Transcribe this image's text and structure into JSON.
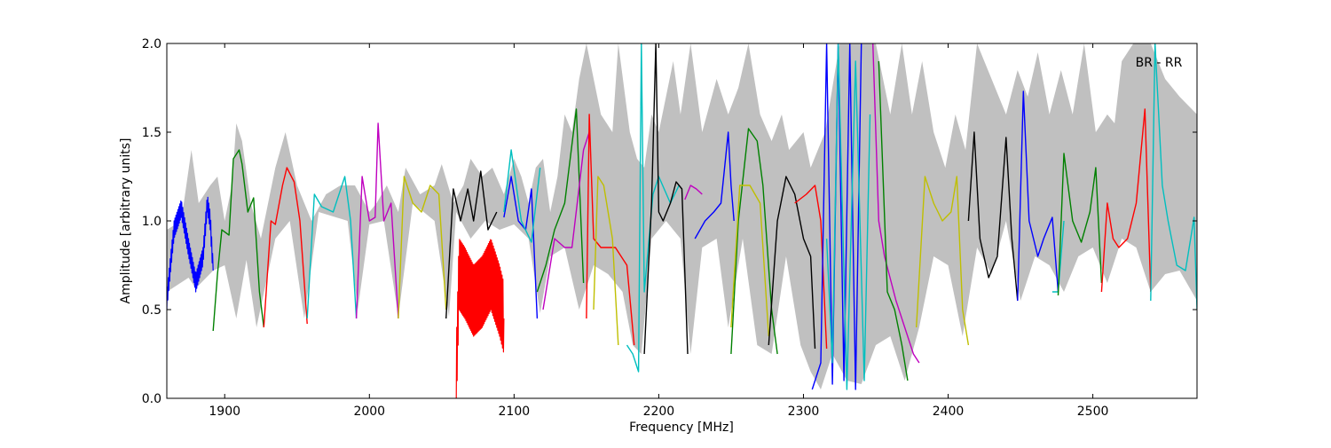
{
  "chart_data": {
    "type": "line",
    "title": "",
    "annotation": "BR - RR",
    "xlabel": "Frequency [MHz]",
    "ylabel": "Amplitude [arbitrary units]",
    "xlim": [
      1860,
      2572
    ],
    "ylim": [
      0.0,
      2.0
    ],
    "xticks": [
      1900,
      2000,
      2100,
      2200,
      2300,
      2400,
      2500
    ],
    "xtick_labels": [
      "1900",
      "2000",
      "2100",
      "2200",
      "2300",
      "2400",
      "2500"
    ],
    "yticks": [
      0.0,
      0.5,
      1.0,
      1.5,
      2.0
    ],
    "ytick_labels": [
      "0.0",
      "0.5",
      "1.0",
      "1.5",
      "2.0"
    ],
    "grid": false,
    "background_band": {
      "color": "#c0c0c0",
      "upper": [
        [
          1860,
          0.95
        ],
        [
          1870,
          1.0
        ],
        [
          1877,
          1.4
        ],
        [
          1882,
          1.1
        ],
        [
          1890,
          1.2
        ],
        [
          1895,
          1.25
        ],
        [
          1900,
          1.0
        ],
        [
          1905,
          1.2
        ],
        [
          1908,
          1.55
        ],
        [
          1912,
          1.45
        ],
        [
          1918,
          1.1
        ],
        [
          1925,
          0.9
        ],
        [
          1935,
          1.3
        ],
        [
          1942,
          1.5
        ],
        [
          1950,
          1.2
        ],
        [
          1960,
          1.0
        ],
        [
          1970,
          1.15
        ],
        [
          1980,
          1.2
        ],
        [
          1990,
          1.2
        ],
        [
          2000,
          1.05
        ],
        [
          2005,
          1.1
        ],
        [
          2012,
          1.2
        ],
        [
          2020,
          1.05
        ],
        [
          2025,
          1.3
        ],
        [
          2035,
          1.15
        ],
        [
          2045,
          1.2
        ],
        [
          2050,
          1.32
        ],
        [
          2058,
          1.1
        ],
        [
          2065,
          1.2
        ],
        [
          2070,
          1.35
        ],
        [
          2078,
          1.25
        ],
        [
          2085,
          1.3
        ],
        [
          2093,
          1.15
        ],
        [
          2100,
          1.35
        ],
        [
          2105,
          1.25
        ],
        [
          2110,
          1.1
        ],
        [
          2115,
          1.3
        ],
        [
          2120,
          1.35
        ],
        [
          2125,
          1.05
        ],
        [
          2130,
          1.25
        ],
        [
          2135,
          1.6
        ],
        [
          2140,
          1.5
        ],
        [
          2145,
          1.8
        ],
        [
          2150,
          2.0
        ],
        [
          2160,
          1.6
        ],
        [
          2168,
          1.5
        ],
        [
          2172,
          2.0
        ],
        [
          2180,
          1.5
        ],
        [
          2185,
          1.35
        ],
        [
          2190,
          1.3
        ],
        [
          2195,
          1.6
        ],
        [
          2200,
          1.5
        ],
        [
          2210,
          1.9
        ],
        [
          2215,
          1.6
        ],
        [
          2222,
          2.0
        ],
        [
          2230,
          1.5
        ],
        [
          2240,
          1.8
        ],
        [
          2248,
          1.6
        ],
        [
          2255,
          1.75
        ],
        [
          2262,
          2.0
        ],
        [
          2270,
          1.6
        ],
        [
          2278,
          1.45
        ],
        [
          2285,
          1.6
        ],
        [
          2290,
          1.4
        ],
        [
          2300,
          1.5
        ],
        [
          2305,
          1.3
        ],
        [
          2315,
          1.5
        ],
        [
          2325,
          2.0
        ],
        [
          2350,
          2.0
        ],
        [
          2360,
          1.6
        ],
        [
          2368,
          2.0
        ],
        [
          2375,
          1.6
        ],
        [
          2382,
          1.9
        ],
        [
          2390,
          1.5
        ],
        [
          2398,
          1.3
        ],
        [
          2405,
          1.6
        ],
        [
          2412,
          1.4
        ],
        [
          2420,
          2.0
        ],
        [
          2440,
          1.6
        ],
        [
          2448,
          1.85
        ],
        [
          2455,
          1.7
        ],
        [
          2462,
          1.95
        ],
        [
          2470,
          1.6
        ],
        [
          2478,
          1.85
        ],
        [
          2486,
          1.6
        ],
        [
          2494,
          2.0
        ],
        [
          2502,
          1.5
        ],
        [
          2510,
          1.6
        ],
        [
          2515,
          1.55
        ],
        [
          2520,
          1.9
        ],
        [
          2528,
          2.0
        ],
        [
          2540,
          2.0
        ],
        [
          2550,
          1.8
        ],
        [
          2560,
          1.7
        ],
        [
          2572,
          1.6
        ]
      ],
      "lower": [
        [
          1860,
          0.6
        ],
        [
          1875,
          0.68
        ],
        [
          1880,
          0.62
        ],
        [
          1892,
          0.72
        ],
        [
          1900,
          0.75
        ],
        [
          1908,
          0.45
        ],
        [
          1915,
          0.78
        ],
        [
          1922,
          0.4
        ],
        [
          1935,
          0.9
        ],
        [
          1945,
          1.0
        ],
        [
          1955,
          0.45
        ],
        [
          1965,
          1.05
        ],
        [
          1985,
          1.0
        ],
        [
          1992,
          0.5
        ],
        [
          2000,
          0.98
        ],
        [
          2010,
          1.0
        ],
        [
          2020,
          0.46
        ],
        [
          2030,
          1.1
        ],
        [
          2045,
          1.0
        ],
        [
          2055,
          0.46
        ],
        [
          2060,
          1.05
        ],
        [
          2070,
          0.9
        ],
        [
          2080,
          1.0
        ],
        [
          2090,
          0.95
        ],
        [
          2100,
          0.98
        ],
        [
          2110,
          0.9
        ],
        [
          2118,
          0.48
        ],
        [
          2125,
          0.8
        ],
        [
          2135,
          0.85
        ],
        [
          2145,
          0.5
        ],
        [
          2155,
          0.75
        ],
        [
          2165,
          0.7
        ],
        [
          2175,
          0.6
        ],
        [
          2182,
          0.3
        ],
        [
          2188,
          0.25
        ],
        [
          2195,
          0.9
        ],
        [
          2205,
          1.0
        ],
        [
          2215,
          0.9
        ],
        [
          2222,
          0.25
        ],
        [
          2230,
          0.85
        ],
        [
          2240,
          0.9
        ],
        [
          2248,
          0.4
        ],
        [
          2258,
          0.9
        ],
        [
          2268,
          0.3
        ],
        [
          2278,
          0.25
        ],
        [
          2288,
          0.8
        ],
        [
          2298,
          0.3
        ],
        [
          2305,
          0.15
        ],
        [
          2312,
          0.05
        ],
        [
          2320,
          0.25
        ],
        [
          2330,
          0.1
        ],
        [
          2340,
          0.08
        ],
        [
          2350,
          0.3
        ],
        [
          2360,
          0.35
        ],
        [
          2370,
          0.1
        ],
        [
          2380,
          0.4
        ],
        [
          2390,
          0.8
        ],
        [
          2400,
          0.75
        ],
        [
          2410,
          0.35
        ],
        [
          2420,
          0.85
        ],
        [
          2430,
          0.7
        ],
        [
          2440,
          1.0
        ],
        [
          2450,
          0.55
        ],
        [
          2460,
          0.8
        ],
        [
          2470,
          0.75
        ],
        [
          2480,
          0.6
        ],
        [
          2490,
          0.8
        ],
        [
          2500,
          0.85
        ],
        [
          2510,
          0.65
        ],
        [
          2520,
          0.9
        ],
        [
          2530,
          0.85
        ],
        [
          2540,
          0.6
        ],
        [
          2550,
          0.7
        ],
        [
          2560,
          0.72
        ],
        [
          2572,
          0.55
        ]
      ]
    },
    "series": [
      {
        "color": "#0000ff",
        "oscillate": 0.05,
        "x": [
          1860,
          1865,
          1870,
          1875,
          1880,
          1885,
          1888,
          1890,
          1892
        ],
        "y": [
          0.55,
          0.95,
          1.07,
          0.85,
          0.65,
          0.8,
          1.1,
          1.0,
          0.72
        ]
      },
      {
        "color": "#008000",
        "x": [
          1892,
          1895,
          1898,
          1903,
          1906,
          1910,
          1912,
          1916,
          1920,
          1924,
          1927
        ],
        "y": [
          0.38,
          0.7,
          0.95,
          0.92,
          1.35,
          1.4,
          1.32,
          1.05,
          1.13,
          0.6,
          0.4
        ]
      },
      {
        "color": "#ff0000",
        "x": [
          1927,
          1932,
          1935,
          1940,
          1943,
          1948,
          1952,
          1957
        ],
        "y": [
          0.4,
          1.0,
          0.98,
          1.2,
          1.3,
          1.22,
          1.0,
          0.42
        ]
      },
      {
        "color": "#00bfbf",
        "x": [
          1957,
          1962,
          1967,
          1975,
          1983,
          1987,
          1991
        ],
        "y": [
          0.45,
          1.15,
          1.08,
          1.05,
          1.25,
          1.0,
          0.45
        ]
      },
      {
        "color": "#bf00bf",
        "x": [
          1991,
          1995,
          2000,
          2004,
          2006,
          2010,
          2015,
          2020
        ],
        "y": [
          0.45,
          1.25,
          1.0,
          1.02,
          1.55,
          1.0,
          1.1,
          0.45
        ]
      },
      {
        "color": "#bfbf00",
        "x": [
          2020,
          2024,
          2030,
          2036,
          2042,
          2048,
          2053
        ],
        "y": [
          0.45,
          1.25,
          1.1,
          1.05,
          1.2,
          1.15,
          0.5
        ]
      },
      {
        "color": "#000000",
        "x": [
          2053,
          2058,
          2063,
          2068,
          2072,
          2077,
          2082,
          2088
        ],
        "y": [
          0.45,
          1.18,
          1.0,
          1.18,
          1.0,
          1.28,
          0.95,
          1.05
        ]
      },
      {
        "color": "#ff0000",
        "oscillate": 0.2,
        "x": [
          2060,
          2062,
          2066,
          2072,
          2078,
          2084,
          2090,
          2093
        ],
        "y": [
          0.1,
          0.7,
          0.65,
          0.55,
          0.6,
          0.7,
          0.55,
          0.45
        ]
      },
      {
        "color": "#0000ff",
        "x": [
          2093,
          2098,
          2103,
          2108,
          2112,
          2116
        ],
        "y": [
          1.02,
          1.25,
          1.0,
          0.95,
          1.18,
          0.45
        ]
      },
      {
        "color": "#00bfbf",
        "x": [
          2093,
          2098,
          2105,
          2112,
          2118
        ],
        "y": [
          1.05,
          1.4,
          1.0,
          0.88,
          1.3
        ]
      },
      {
        "color": "#008000",
        "x": [
          2116,
          2122,
          2128,
          2135,
          2143,
          2148
        ],
        "y": [
          0.6,
          0.75,
          0.95,
          1.1,
          1.63,
          0.65
        ]
      },
      {
        "color": "#bf00bf",
        "x": [
          2120,
          2128,
          2135,
          2140,
          2148,
          2152
        ],
        "y": [
          0.5,
          0.9,
          0.85,
          0.85,
          1.4,
          1.5
        ]
      },
      {
        "color": "#ff0000",
        "x": [
          2150,
          2152,
          2155,
          2160,
          2170,
          2178,
          2183
        ],
        "y": [
          0.45,
          1.6,
          0.9,
          0.85,
          0.85,
          0.75,
          0.3
        ]
      },
      {
        "color": "#bfbf00",
        "x": [
          2155,
          2158,
          2162,
          2168,
          2172
        ],
        "y": [
          0.5,
          1.25,
          1.2,
          0.9,
          0.3
        ]
      },
      {
        "color": "#00bfbf",
        "x": [
          2178,
          2182,
          2186,
          2188,
          2190,
          2196,
          2200,
          2208,
          2214
        ],
        "y": [
          0.3,
          0.25,
          0.15,
          2.0,
          0.6,
          1.15,
          1.25,
          1.1,
          1.2
        ]
      },
      {
        "color": "#000000",
        "x": [
          2190,
          2195,
          2198,
          2200,
          2203,
          2208,
          2212,
          2216,
          2220
        ],
        "y": [
          0.25,
          1.1,
          2.0,
          1.05,
          1.0,
          1.1,
          1.22,
          1.18,
          0.25
        ]
      },
      {
        "color": "#bf00bf",
        "x": [
          2218,
          2222,
          2226,
          2230
        ],
        "y": [
          1.12,
          1.2,
          1.18,
          1.15
        ]
      },
      {
        "color": "#0000ff",
        "x": [
          2225,
          2232,
          2238,
          2243,
          2248,
          2250,
          2252
        ],
        "y": [
          0.9,
          1.0,
          1.05,
          1.1,
          1.5,
          1.2,
          1.0
        ]
      },
      {
        "color": "#008000",
        "x": [
          2250,
          2255,
          2262,
          2268,
          2272,
          2278,
          2282
        ],
        "y": [
          0.25,
          1.0,
          1.52,
          1.45,
          1.2,
          0.5,
          0.25
        ]
      },
      {
        "color": "#bfbf00",
        "x": [
          2250,
          2256,
          2263,
          2270,
          2276
        ],
        "y": [
          0.4,
          1.2,
          1.2,
          1.1,
          0.35
        ]
      },
      {
        "color": "#000000",
        "x": [
          2276,
          2282,
          2288,
          2294,
          2300,
          2305,
          2308
        ],
        "y": [
          0.3,
          1.0,
          1.25,
          1.15,
          0.9,
          0.8,
          0.28
        ]
      },
      {
        "color": "#ff0000",
        "x": [
          2294,
          2302,
          2308,
          2312,
          2316
        ],
        "y": [
          1.1,
          1.15,
          1.2,
          1.0,
          0.28
        ]
      },
      {
        "color": "#0000ff",
        "x": [
          2306,
          2312,
          2316,
          2320,
          2324,
          2328,
          2332,
          2336,
          2340
        ],
        "y": [
          0.05,
          0.2,
          2.0,
          0.08,
          2.0,
          0.1,
          2.0,
          0.05,
          2.0
        ]
      },
      {
        "color": "#00bfbf",
        "x": [
          2316,
          2320,
          2324,
          2330,
          2336,
          2342,
          2346
        ],
        "y": [
          0.9,
          0.2,
          2.0,
          0.05,
          1.9,
          0.1,
          1.6
        ]
      },
      {
        "color": "#bf00bf",
        "x": [
          2348,
          2352,
          2356,
          2364,
          2370,
          2376,
          2380
        ],
        "y": [
          2.0,
          1.0,
          0.8,
          0.55,
          0.4,
          0.25,
          0.2
        ]
      },
      {
        "color": "#008000",
        "x": [
          2352,
          2358,
          2363,
          2368,
          2372
        ],
        "y": [
          1.9,
          0.6,
          0.5,
          0.3,
          0.1
        ]
      },
      {
        "color": "#bfbf00",
        "x": [
          2378,
          2384,
          2390,
          2396,
          2402,
          2406,
          2410,
          2414
        ],
        "y": [
          0.4,
          1.25,
          1.1,
          1.0,
          1.05,
          1.25,
          0.5,
          0.3
        ]
      },
      {
        "color": "#000000",
        "x": [
          2414,
          2418,
          2422,
          2428,
          2434,
          2440,
          2444,
          2448
        ],
        "y": [
          1.0,
          1.5,
          0.9,
          0.68,
          0.8,
          1.47,
          0.9,
          0.55
        ]
      },
      {
        "color": "#0000ff",
        "x": [
          2448,
          2452,
          2456,
          2462,
          2466,
          2472,
          2476
        ],
        "y": [
          0.55,
          1.73,
          1.0,
          0.8,
          0.9,
          1.02,
          0.6
        ]
      },
      {
        "color": "#00bfbf",
        "x": [
          2472,
          2476,
          2480
        ],
        "y": [
          0.6,
          0.6,
          1.0
        ]
      },
      {
        "color": "#008000",
        "x": [
          2476,
          2480,
          2486,
          2492,
          2498,
          2502,
          2506
        ],
        "y": [
          0.58,
          1.38,
          1.0,
          0.88,
          1.05,
          1.3,
          0.65
        ]
      },
      {
        "color": "#ff0000",
        "x": [
          2506,
          2510,
          2514,
          2518,
          2524,
          2530,
          2536,
          2540
        ],
        "y": [
          0.6,
          1.1,
          0.9,
          0.85,
          0.9,
          1.1,
          1.63,
          0.6
        ]
      },
      {
        "color": "#00bfbf",
        "x": [
          2540,
          2543,
          2548,
          2552,
          2558,
          2564,
          2570,
          2572
        ],
        "y": [
          0.55,
          2.0,
          1.2,
          1.0,
          0.75,
          0.72,
          1.02,
          0.5
        ]
      }
    ]
  }
}
